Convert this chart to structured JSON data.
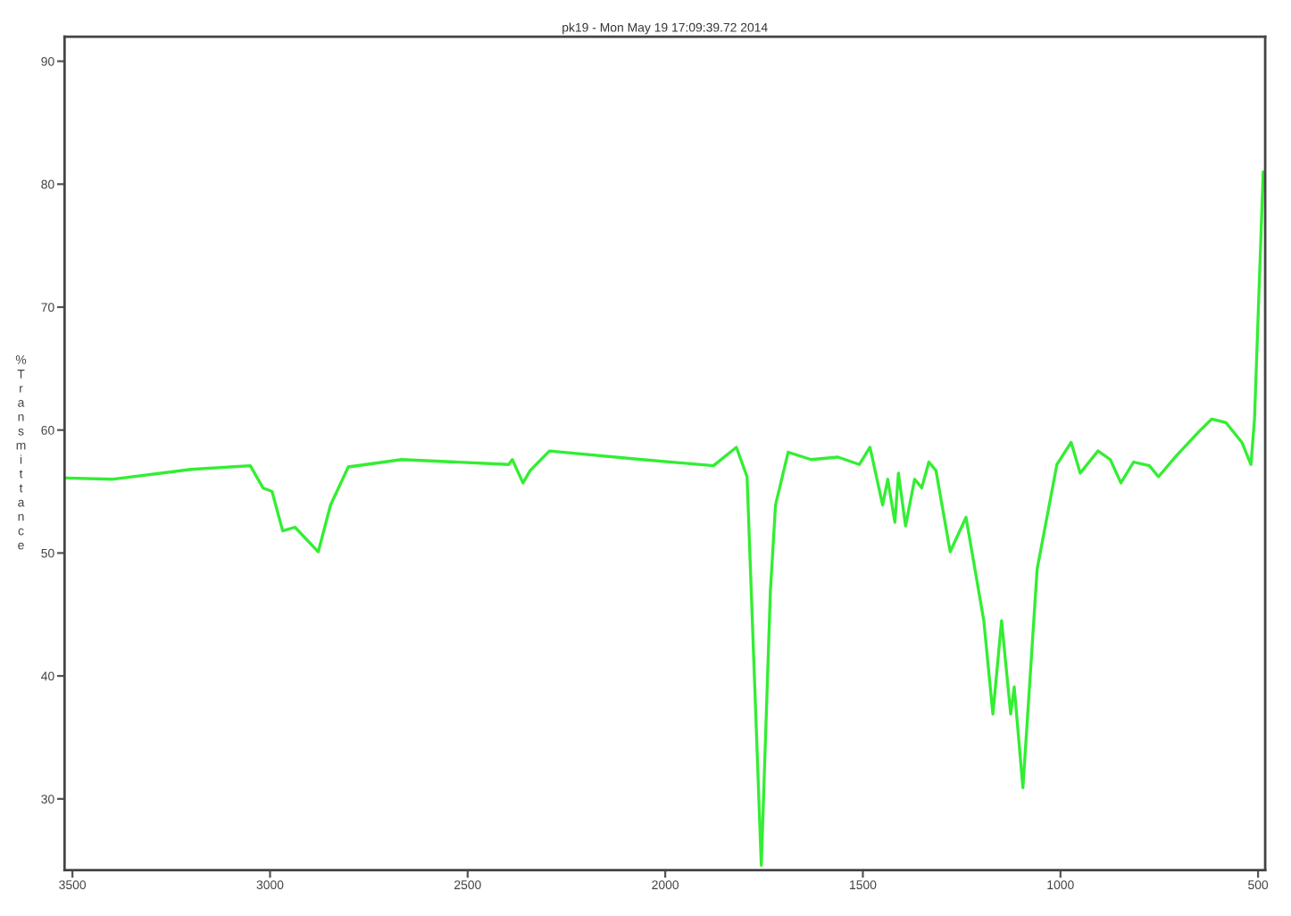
{
  "chart_data": {
    "type": "line",
    "title": "pk19 - Mon May 19 17:09:39.72 2014",
    "ylabel": "% Transmittance",
    "xlim": [
      3520,
      482
    ],
    "ylim": [
      24.2,
      92
    ],
    "xticks": [
      3500,
      3000,
      2500,
      2000,
      1500,
      1000,
      500
    ],
    "yticks": [
      30,
      40,
      50,
      60,
      70,
      80,
      90
    ],
    "grid": false,
    "legend": false,
    "series": [
      {
        "color": "#33ee33",
        "x": [
          3518,
          3400,
          3200,
          3050,
          3018,
          2995,
          2968,
          2937,
          2878,
          2847,
          2802,
          2667,
          2396,
          2387,
          2360,
          2342,
          2293,
          2059,
          1878,
          1820,
          1793,
          1757,
          1734,
          1721,
          1689,
          1631,
          1563,
          1509,
          1482,
          1450,
          1437,
          1419,
          1410,
          1392,
          1369,
          1351,
          1333,
          1315,
          1279,
          1239,
          1194,
          1171,
          1149,
          1126,
          1117,
          1095,
          1059,
          1009,
          973,
          950,
          905,
          874,
          847,
          815,
          775,
          752,
          707,
          649,
          617,
          581,
          541,
          518,
          509,
          487
        ],
        "values": [
          56.1,
          56.0,
          56.8,
          57.1,
          55.3,
          55.0,
          51.8,
          52.1,
          50.1,
          53.9,
          57.0,
          57.6,
          57.2,
          57.6,
          55.7,
          56.7,
          58.3,
          57.6,
          57.1,
          58.6,
          56.2,
          24.6,
          46.9,
          53.9,
          58.2,
          57.6,
          57.8,
          57.2,
          58.6,
          53.9,
          56.0,
          52.5,
          56.5,
          52.2,
          56.0,
          55.3,
          57.4,
          56.7,
          50.1,
          52.9,
          44.5,
          36.9,
          44.5,
          36.9,
          39.1,
          30.9,
          48.7,
          57.2,
          59.0,
          56.5,
          58.3,
          57.6,
          55.7,
          57.4,
          57.1,
          56.2,
          57.9,
          59.9,
          60.9,
          60.6,
          59.0,
          57.2,
          60.9,
          81.0
        ]
      }
    ]
  }
}
